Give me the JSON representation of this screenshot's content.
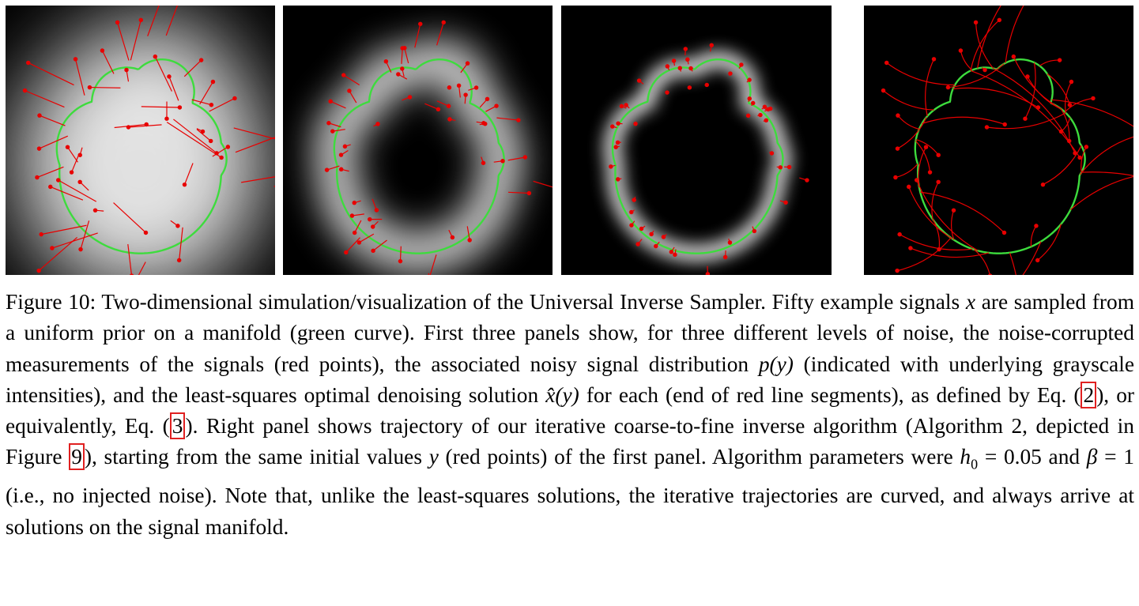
{
  "figure": {
    "caption_prefix": "Figure 10:",
    "caption_parts": {
      "p1": "Two-dimensional simulation/visualization of the Universal Inverse Sampler. Fifty example signals",
      "x": "x",
      "p2": "are sampled from a uniform prior on a manifold (green curve). First three panels show, for three different levels of noise, the noise-corrupted measurements of the signals (red points), the associated noisy signal distribution",
      "py": "p(y)",
      "p3": "(indicated with underlying grayscale intensities), and the least-squares optimal denoising solution",
      "xhat": "x̂(y)",
      "p4": "for each (end of red line segments), as defined by Eq. (",
      "ref_eq2": "2",
      "p5": "), or equivalently, Eq. (",
      "ref_eq3": "3",
      "p6": "). Right panel shows trajectory of our iterative coarse-to-fine inverse algorithm (Algorithm 2, depicted in Figure",
      "ref_fig9": "9",
      "p7": "), starting from the same initial values",
      "y": "y",
      "p8": "(red points) of the first panel. Algorithm parameters were",
      "h0": "h",
      "h0_sub": "0",
      "p9": "= 0.05 and",
      "beta": "β",
      "p10": "= 1 (i.e., no injected noise). Note that, unlike the least-squares solutions, the iterative trajectories are curved, and always arrive at solutions on the signal manifold."
    },
    "colors": {
      "manifold": "#3ddc3d",
      "points": "#e80000",
      "ref_box": "#e02020",
      "panel_bg": "#000000"
    },
    "panels": [
      {
        "name": "panel-noise-high",
        "noise_level": "high",
        "n_points": 50
      },
      {
        "name": "panel-noise-medium",
        "noise_level": "medium",
        "n_points": 50
      },
      {
        "name": "panel-noise-low",
        "noise_level": "low",
        "n_points": 50
      },
      {
        "name": "panel-iterative-trajectories",
        "noise_level": "iterative",
        "n_points": 50
      }
    ]
  }
}
